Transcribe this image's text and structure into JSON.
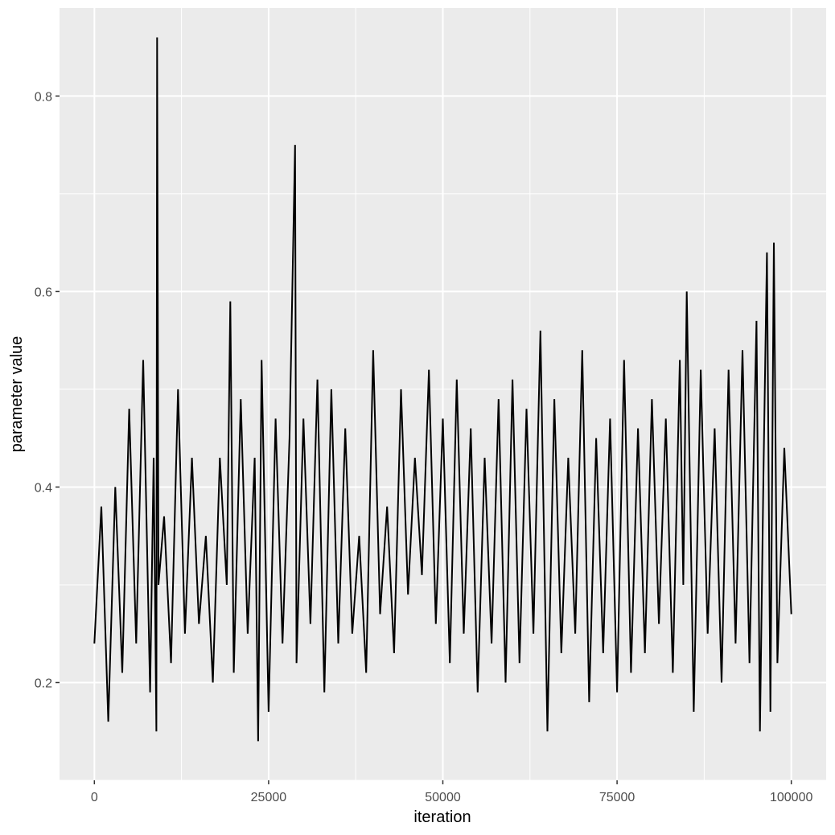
{
  "chart_data": {
    "type": "line",
    "title": "",
    "xlabel": "iteration",
    "ylabel": "parameter value",
    "xlim": [
      -5000,
      105000
    ],
    "ylim": [
      0.1,
      0.89
    ],
    "x_ticks": [
      0,
      25000,
      50000,
      75000,
      100000
    ],
    "x_tick_labels": [
      "0",
      "25000",
      "50000",
      "75000",
      "100000"
    ],
    "y_ticks": [
      0.2,
      0.4,
      0.6,
      0.8
    ],
    "y_tick_labels": [
      "0.2",
      "0.4",
      "0.6",
      "0.8"
    ],
    "grid": true,
    "panel_color": "#ebebeb",
    "grid_color": "#ffffff",
    "line_color": "#000000",
    "series": [
      {
        "name": "",
        "x": [
          0,
          1000,
          2000,
          3000,
          4000,
          5000,
          6000,
          7000,
          8000,
          8500,
          8900,
          9000,
          9200,
          10000,
          11000,
          12000,
          13000,
          14000,
          15000,
          16000,
          17000,
          18000,
          19000,
          19500,
          20000,
          21000,
          22000,
          23000,
          23500,
          24000,
          25000,
          26000,
          27000,
          28000,
          28800,
          29000,
          30000,
          31000,
          32000,
          33000,
          34000,
          35000,
          36000,
          37000,
          38000,
          39000,
          40000,
          41000,
          42000,
          43000,
          44000,
          45000,
          46000,
          47000,
          48000,
          49000,
          50000,
          51000,
          52000,
          53000,
          54000,
          55000,
          56000,
          57000,
          58000,
          59000,
          60000,
          61000,
          62000,
          63000,
          64000,
          65000,
          66000,
          67000,
          68000,
          69000,
          70000,
          71000,
          72000,
          73000,
          74000,
          75000,
          76000,
          77000,
          78000,
          79000,
          80000,
          81000,
          82000,
          83000,
          84000,
          84500,
          85000,
          86000,
          87000,
          88000,
          89000,
          90000,
          91000,
          92000,
          93000,
          94000,
          95000,
          95500,
          96000,
          96500,
          97000,
          97500,
          98000,
          99000,
          100000
        ],
        "y": [
          0.24,
          0.38,
          0.16,
          0.4,
          0.21,
          0.48,
          0.24,
          0.53,
          0.19,
          0.43,
          0.15,
          0.86,
          0.3,
          0.37,
          0.22,
          0.5,
          0.25,
          0.43,
          0.26,
          0.35,
          0.2,
          0.43,
          0.3,
          0.59,
          0.21,
          0.49,
          0.25,
          0.43,
          0.14,
          0.53,
          0.17,
          0.47,
          0.24,
          0.45,
          0.75,
          0.22,
          0.47,
          0.26,
          0.51,
          0.19,
          0.5,
          0.24,
          0.46,
          0.25,
          0.35,
          0.21,
          0.54,
          0.27,
          0.38,
          0.23,
          0.5,
          0.29,
          0.43,
          0.31,
          0.52,
          0.26,
          0.47,
          0.22,
          0.51,
          0.25,
          0.46,
          0.19,
          0.43,
          0.24,
          0.49,
          0.2,
          0.51,
          0.22,
          0.48,
          0.25,
          0.56,
          0.15,
          0.49,
          0.23,
          0.43,
          0.25,
          0.54,
          0.18,
          0.45,
          0.23,
          0.47,
          0.19,
          0.53,
          0.21,
          0.46,
          0.23,
          0.49,
          0.26,
          0.47,
          0.21,
          0.53,
          0.3,
          0.6,
          0.17,
          0.52,
          0.25,
          0.46,
          0.2,
          0.52,
          0.24,
          0.54,
          0.22,
          0.57,
          0.15,
          0.41,
          0.64,
          0.17,
          0.65,
          0.22,
          0.44,
          0.27
        ]
      }
    ]
  }
}
